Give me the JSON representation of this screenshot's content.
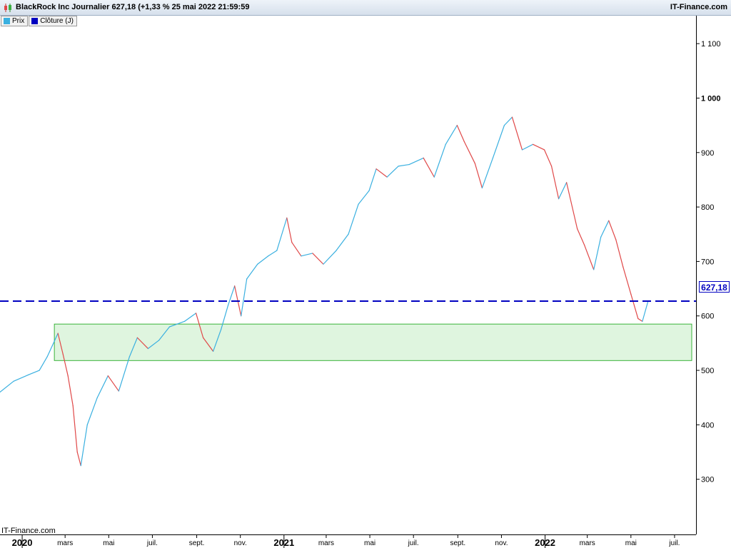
{
  "header": {
    "title": "BlackRock Inc Journalier 627,18 (+1,33 % 25 mai 2022 21:59:59",
    "brand": "IT-Finance.com"
  },
  "legend": [
    {
      "label": "Prix",
      "color": "#3ab0e0"
    },
    {
      "label": "Clôture (J)",
      "color": "#0000c0"
    }
  ],
  "watermark": "IT-Finance.com",
  "colors": {
    "up": "#3ab0e0",
    "down": "#e04848",
    "close_line": "#0000c0",
    "zone_fill": "#dff5df",
    "zone_border": "#39b339"
  },
  "chart_data": {
    "type": "line",
    "ylim": [
      200,
      1150
    ],
    "xlim": [
      "2019-12-01",
      "2022-07-31"
    ],
    "y_ticks": [
      {
        "v": 300,
        "label": "300"
      },
      {
        "v": 400,
        "label": "400"
      },
      {
        "v": 500,
        "label": "500"
      },
      {
        "v": 600,
        "label": "600"
      },
      {
        "v": 700,
        "label": "700"
      },
      {
        "v": 800,
        "label": "800"
      },
      {
        "v": 900,
        "label": "900"
      },
      {
        "v": 1000,
        "label": "1 000"
      },
      {
        "v": 1100,
        "label": "1 100"
      }
    ],
    "x_ticks": [
      {
        "date": "2020-01-01",
        "label": "2020",
        "bold": true
      },
      {
        "date": "2020-03-01",
        "label": "mars",
        "bold": false
      },
      {
        "date": "2020-05-01",
        "label": "mai",
        "bold": false
      },
      {
        "date": "2020-07-01",
        "label": "juil.",
        "bold": false
      },
      {
        "date": "2020-09-01",
        "label": "sept.",
        "bold": false
      },
      {
        "date": "2020-11-01",
        "label": "nov.",
        "bold": false
      },
      {
        "date": "2021-01-01",
        "label": "2021",
        "bold": true
      },
      {
        "date": "2021-03-01",
        "label": "mars",
        "bold": false
      },
      {
        "date": "2021-05-01",
        "label": "mai",
        "bold": false
      },
      {
        "date": "2021-07-01",
        "label": "juil.",
        "bold": false
      },
      {
        "date": "2021-09-01",
        "label": "sept.",
        "bold": false
      },
      {
        "date": "2021-11-01",
        "label": "nov.",
        "bold": false
      },
      {
        "date": "2022-01-01",
        "label": "2022",
        "bold": true
      },
      {
        "date": "2022-03-01",
        "label": "mars",
        "bold": false
      },
      {
        "date": "2022-05-01",
        "label": "mai",
        "bold": false
      },
      {
        "date": "2022-07-01",
        "label": "juil.",
        "bold": false
      }
    ],
    "series": [
      {
        "points": [
          [
            "2019-12-01",
            460
          ],
          [
            "2019-12-20",
            480
          ],
          [
            "2020-01-10",
            492
          ],
          [
            "2020-01-25",
            500
          ],
          [
            "2020-02-05",
            525
          ],
          [
            "2020-02-12",
            545
          ],
          [
            "2020-02-20",
            568
          ],
          [
            "2020-02-27",
            530
          ],
          [
            "2020-03-05",
            490
          ],
          [
            "2020-03-12",
            435
          ],
          [
            "2020-03-18",
            350
          ],
          [
            "2020-03-23",
            325
          ],
          [
            "2020-04-01",
            400
          ],
          [
            "2020-04-15",
            450
          ],
          [
            "2020-04-30",
            490
          ],
          [
            "2020-05-15",
            462
          ],
          [
            "2020-05-30",
            525
          ],
          [
            "2020-06-10",
            560
          ],
          [
            "2020-06-25",
            540
          ],
          [
            "2020-07-10",
            555
          ],
          [
            "2020-07-25",
            580
          ],
          [
            "2020-08-15",
            590
          ],
          [
            "2020-08-31",
            605
          ],
          [
            "2020-09-10",
            560
          ],
          [
            "2020-09-24",
            535
          ],
          [
            "2020-10-05",
            575
          ],
          [
            "2020-10-15",
            620
          ],
          [
            "2020-10-24",
            655
          ],
          [
            "2020-11-02",
            600
          ],
          [
            "2020-11-10",
            668
          ],
          [
            "2020-11-25",
            695
          ],
          [
            "2020-12-10",
            710
          ],
          [
            "2020-12-22",
            720
          ],
          [
            "2021-01-05",
            780
          ],
          [
            "2021-01-12",
            735
          ],
          [
            "2021-01-25",
            710
          ],
          [
            "2021-02-10",
            715
          ],
          [
            "2021-02-25",
            695
          ],
          [
            "2021-03-15",
            720
          ],
          [
            "2021-04-01",
            750
          ],
          [
            "2021-04-15",
            805
          ],
          [
            "2021-04-30",
            830
          ],
          [
            "2021-05-10",
            870
          ],
          [
            "2021-05-25",
            855
          ],
          [
            "2021-06-10",
            875
          ],
          [
            "2021-06-25",
            878
          ],
          [
            "2021-07-15",
            890
          ],
          [
            "2021-07-30",
            855
          ],
          [
            "2021-08-15",
            915
          ],
          [
            "2021-08-31",
            950
          ],
          [
            "2021-09-10",
            920
          ],
          [
            "2021-09-25",
            880
          ],
          [
            "2021-10-05",
            835
          ],
          [
            "2021-10-20",
            890
          ],
          [
            "2021-11-05",
            950
          ],
          [
            "2021-11-16",
            965
          ],
          [
            "2021-11-30",
            905
          ],
          [
            "2021-12-15",
            915
          ],
          [
            "2021-12-31",
            905
          ],
          [
            "2022-01-10",
            875
          ],
          [
            "2022-01-20",
            815
          ],
          [
            "2022-01-31",
            845
          ],
          [
            "2022-02-15",
            760
          ],
          [
            "2022-02-25",
            730
          ],
          [
            "2022-03-10",
            685
          ],
          [
            "2022-03-20",
            745
          ],
          [
            "2022-03-31",
            775
          ],
          [
            "2022-04-10",
            740
          ],
          [
            "2022-04-20",
            690
          ],
          [
            "2022-05-01",
            640
          ],
          [
            "2022-05-11",
            595
          ],
          [
            "2022-05-17",
            590
          ],
          [
            "2022-05-25",
            627.18
          ]
        ]
      }
    ],
    "close_level": 627.18,
    "close_label": "627,18",
    "support_zone": {
      "from_date": "2020-02-15",
      "to_date": "2022-07-31",
      "low": 518,
      "high": 585
    }
  }
}
